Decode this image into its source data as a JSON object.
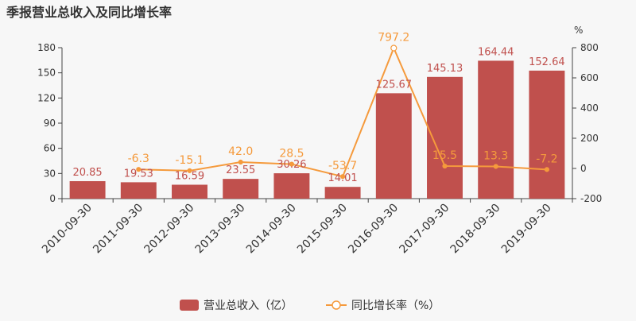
{
  "title": "季报营业总收入及同比增长率",
  "chart_data": {
    "type": "bar",
    "categories": [
      "2010-09-30",
      "2011-09-30",
      "2012-09-30",
      "2013-09-30",
      "2014-09-30",
      "2015-09-30",
      "2016-09-30",
      "2017-09-30",
      "2018-09-30",
      "2019-09-30"
    ],
    "series": [
      {
        "name": "营业总收入（亿）",
        "type": "bar",
        "axis": "left",
        "color": "#c0504d",
        "values": [
          20.85,
          19.53,
          16.59,
          23.55,
          30.26,
          14.01,
          125.67,
          145.13,
          164.44,
          152.64
        ],
        "labels": [
          "20.85",
          "19.53",
          "16.59",
          "23.55",
          "30.26",
          "14.01",
          "125.67",
          "145.13",
          "164.44",
          "152.64"
        ]
      },
      {
        "name": "同比增长率（%）",
        "type": "line",
        "axis": "right",
        "color": "#f59a3c",
        "values": [
          null,
          -6.3,
          -15.1,
          42.0,
          28.5,
          -53.7,
          797.2,
          15.5,
          13.3,
          -7.2
        ],
        "labels": [
          "",
          "-6.3",
          "-15.1",
          "42.0",
          "28.5",
          "-53.7",
          "797.2",
          "15.5",
          "13.3",
          "-7.2"
        ]
      }
    ],
    "y_left": {
      "ylim": [
        0,
        180
      ],
      "ticks": [
        "0",
        "30",
        "60",
        "90",
        "120",
        "150",
        "180"
      ]
    },
    "y_right": {
      "ylim": [
        -200,
        800
      ],
      "ticks": [
        "-200",
        "0",
        "200",
        "400",
        "600",
        "800"
      ],
      "unit": "%"
    },
    "grid": false,
    "legend_position": "bottom-center"
  }
}
